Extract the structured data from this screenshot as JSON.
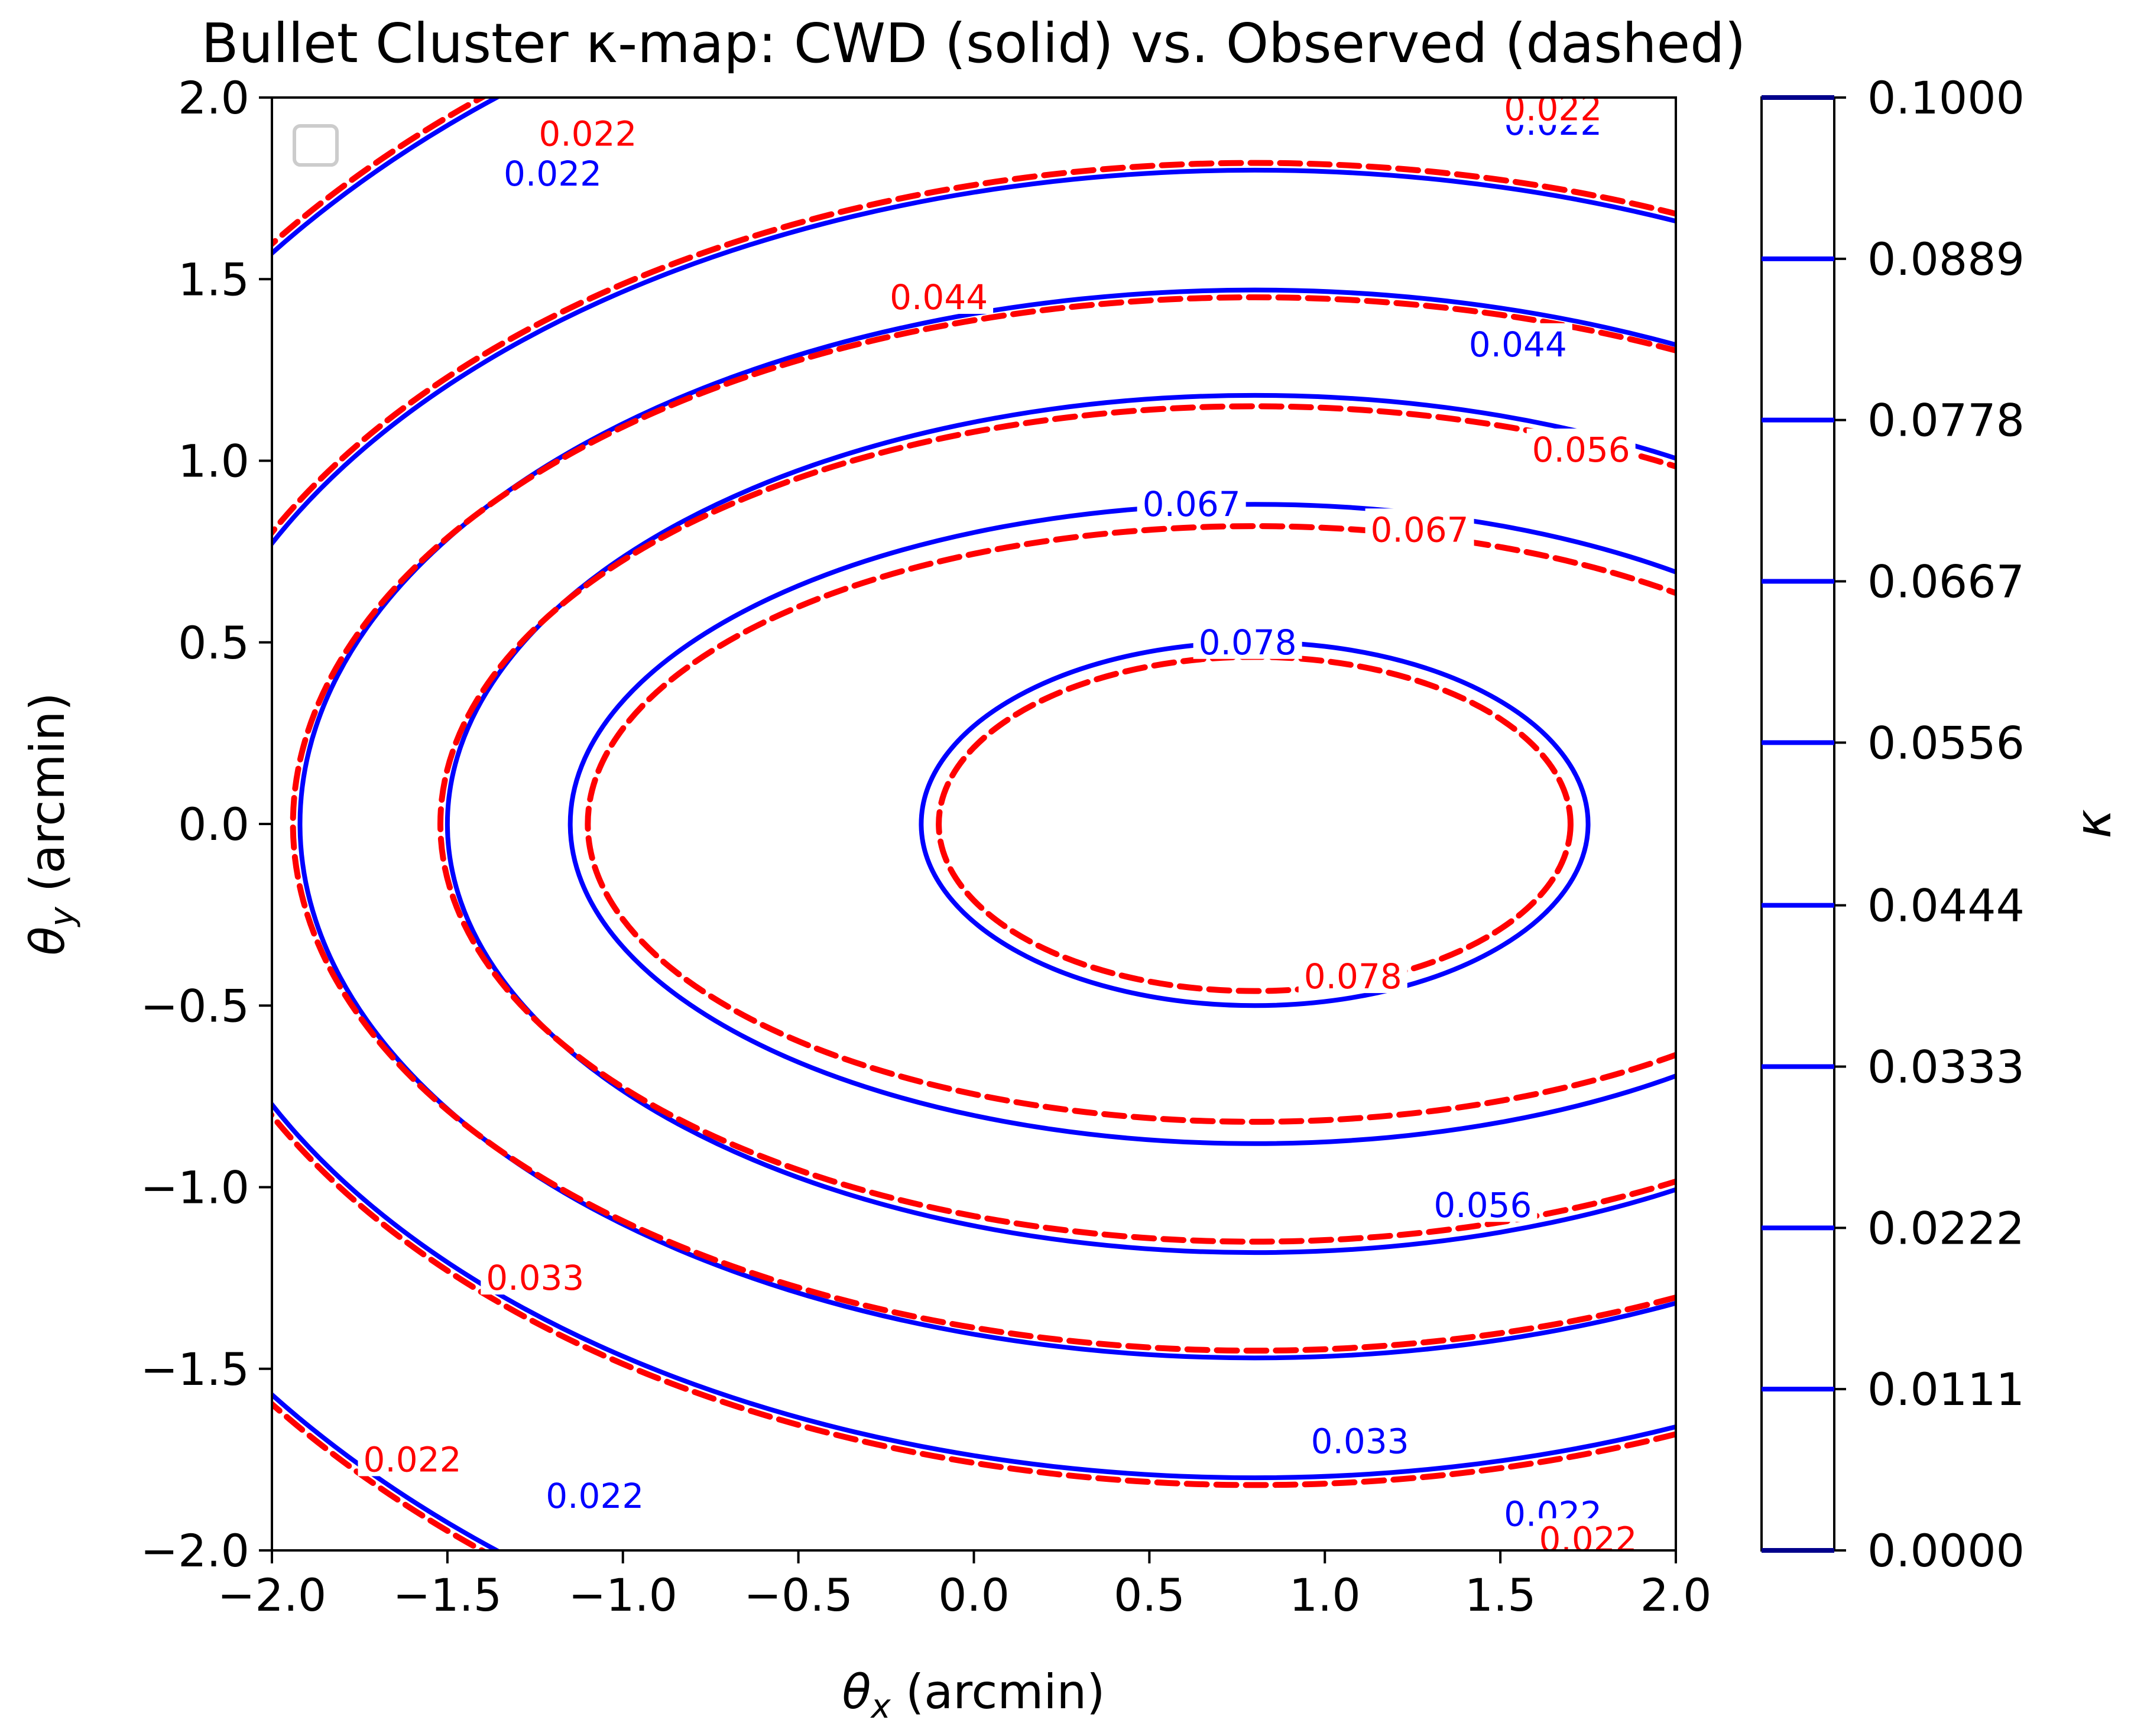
{
  "chart_data": {
    "type": "contour",
    "title": "Bullet Cluster κ-map: CWD (solid) vs. Observed (dashed)",
    "xlabel": "θx (arcmin)",
    "ylabel": "θy (arcmin)",
    "xlim": [
      -2.0,
      2.0
    ],
    "ylim": [
      -2.0,
      2.0
    ],
    "x_ticks": [
      "−2.0",
      "−1.5",
      "−1.0",
      "−0.5",
      "0.0",
      "0.5",
      "1.0",
      "1.5",
      "2.0"
    ],
    "y_ticks": [
      "−2.0",
      "−1.5",
      "−1.0",
      "−0.5",
      "0.0",
      "0.5",
      "1.0",
      "1.5",
      "2.0"
    ],
    "levels": [
      0.0222,
      0.0333,
      0.0444,
      0.0556,
      0.0667,
      0.0778
    ],
    "series": [
      {
        "name": "CWD",
        "style": "solid",
        "color": "#0000ff",
        "center": [
          0.8,
          0.0
        ],
        "contours": [
          {
            "level": 0.0778,
            "label": "0.078",
            "semi_axes": [
              0.95,
              0.5
            ]
          },
          {
            "level": 0.0667,
            "label": "0.067",
            "semi_axes": [
              1.95,
              0.88
            ]
          },
          {
            "level": 0.0556,
            "label": "0.056",
            "semi_axes": [
              2.3,
              1.18
            ]
          },
          {
            "level": 0.0444,
            "label": "0.044",
            "semi_axes": [
              2.72,
              1.47
            ]
          },
          {
            "level": 0.0333,
            "label": "0.033",
            "semi_axes": [
              3.1,
              1.8
            ]
          },
          {
            "level": 0.0222,
            "label": "0.022",
            "semi_axes": [
              3.6,
              2.5
            ]
          }
        ]
      },
      {
        "name": "Observed",
        "style": "dashed",
        "color": "#ff0000",
        "center": [
          0.8,
          0.0
        ],
        "contours": [
          {
            "level": 0.0778,
            "label": "0.078",
            "semi_axes": [
              0.9,
              0.46
            ]
          },
          {
            "level": 0.0667,
            "label": "0.067",
            "semi_axes": [
              1.9,
              0.82
            ]
          },
          {
            "level": 0.0556,
            "label": "0.056",
            "semi_axes": [
              2.32,
              1.15
            ]
          },
          {
            "level": 0.0444,
            "label": "0.044",
            "semi_axes": [
              2.74,
              1.45
            ]
          },
          {
            "level": 0.0333,
            "label": "0.033",
            "semi_axes": [
              3.12,
              1.82
            ]
          },
          {
            "level": 0.0222,
            "label": "0.022",
            "semi_axes": [
              3.62,
              2.52
            ]
          }
        ]
      }
    ],
    "colorbar": {
      "label": "κ",
      "range": [
        0.0,
        0.1
      ],
      "tick_values": [
        0.0,
        0.0111,
        0.0222,
        0.0333,
        0.0444,
        0.0556,
        0.0667,
        0.0778,
        0.0889,
        0.1
      ],
      "tick_labels": [
        "0.0000",
        "0.0111",
        "0.0222",
        "0.0333",
        "0.0444",
        "0.0556",
        "0.0667",
        "0.0778",
        "0.0889",
        "0.1000"
      ]
    },
    "labels": [
      {
        "series": 0,
        "text": "0.078",
        "x": 0.78,
        "y": 0.5
      },
      {
        "series": 0,
        "text": "0.067",
        "x": 0.62,
        "y": 0.88
      },
      {
        "series": 0,
        "text": "0.044",
        "x": 1.55,
        "y": 1.32
      },
      {
        "series": 0,
        "text": "0.056",
        "x": 1.45,
        "y": -1.05
      },
      {
        "series": 0,
        "text": "0.033",
        "x": 1.1,
        "y": -1.7
      },
      {
        "series": 0,
        "text": "0.022",
        "x": -1.2,
        "y": 1.79
      },
      {
        "series": 0,
        "text": "0.022",
        "x": -1.08,
        "y": -1.85
      },
      {
        "series": 0,
        "text": "0.022",
        "x": 1.65,
        "y": 1.93
      },
      {
        "series": 0,
        "text": "0.022",
        "x": 1.65,
        "y": -1.9
      },
      {
        "series": 1,
        "text": "0.078",
        "x": 1.08,
        "y": -0.42
      },
      {
        "series": 1,
        "text": "0.067",
        "x": 1.27,
        "y": 0.81
      },
      {
        "series": 1,
        "text": "0.056",
        "x": 1.73,
        "y": 1.03
      },
      {
        "series": 1,
        "text": "0.044",
        "x": -0.1,
        "y": 1.45
      },
      {
        "series": 1,
        "text": "0.033",
        "x": -1.25,
        "y": -1.25
      },
      {
        "series": 1,
        "text": "0.022",
        "x": -1.1,
        "y": 1.9
      },
      {
        "series": 1,
        "text": "0.022",
        "x": -1.6,
        "y": -1.75
      },
      {
        "series": 1,
        "text": "0.022",
        "x": 1.65,
        "y": 1.97
      },
      {
        "series": 1,
        "text": "0.022",
        "x": 1.75,
        "y": -1.97
      }
    ]
  }
}
